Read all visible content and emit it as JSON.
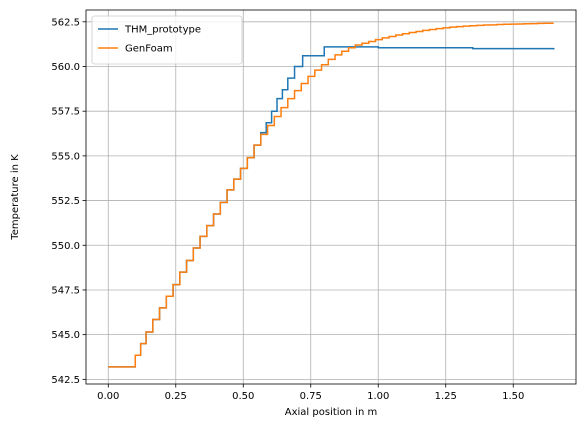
{
  "chart_data": {
    "type": "line",
    "title": "",
    "xlabel": "Axial position in m",
    "ylabel": "Temperature in K",
    "xlim": [
      -0.0825,
      1.7325
    ],
    "ylim": [
      542.24,
      563.16
    ],
    "xticks": [
      0.0,
      0.25,
      0.5,
      0.75,
      1.0,
      1.25,
      1.5
    ],
    "xtick_labels": [
      "0.00",
      "0.25",
      "0.50",
      "0.75",
      "1.00",
      "1.25",
      "1.50"
    ],
    "yticks": [
      542.5,
      545.0,
      547.5,
      550.0,
      552.5,
      555.0,
      557.5,
      560.0,
      562.5
    ],
    "ytick_labels": [
      "542.5",
      "545.0",
      "547.5",
      "550.0",
      "552.5",
      "555.0",
      "557.5",
      "560.0",
      "562.5"
    ],
    "grid": true,
    "legend_position": "top-left",
    "step": "post",
    "series": [
      {
        "name": "THM_prototype",
        "color": "#1f77b4",
        "x": [
          0.0,
          0.1,
          0.12,
          0.14,
          0.165,
          0.19,
          0.215,
          0.24,
          0.265,
          0.29,
          0.315,
          0.34,
          0.365,
          0.39,
          0.415,
          0.44,
          0.465,
          0.49,
          0.515,
          0.54,
          0.565,
          0.585,
          0.605,
          0.625,
          0.645,
          0.665,
          0.69,
          0.72,
          0.8,
          0.9,
          1.0,
          1.1,
          1.23,
          1.35,
          1.5,
          1.65
        ],
        "y": [
          543.2,
          543.85,
          544.5,
          545.15,
          545.85,
          546.5,
          547.15,
          547.8,
          548.5,
          549.15,
          549.85,
          550.5,
          551.1,
          551.75,
          552.4,
          553.1,
          553.7,
          554.3,
          554.9,
          555.6,
          556.3,
          556.85,
          557.5,
          558.2,
          558.7,
          559.35,
          560.0,
          560.6,
          561.1,
          561.1,
          561.05,
          561.05,
          561.05,
          561.0,
          561.0,
          560.95
        ]
      },
      {
        "name": "GenFoam",
        "color": "#ff7f0e",
        "x": [
          0.0,
          0.1,
          0.12,
          0.14,
          0.165,
          0.19,
          0.215,
          0.24,
          0.265,
          0.29,
          0.315,
          0.34,
          0.365,
          0.39,
          0.415,
          0.44,
          0.465,
          0.49,
          0.515,
          0.54,
          0.565,
          0.59,
          0.615,
          0.64,
          0.665,
          0.69,
          0.715,
          0.74,
          0.765,
          0.79,
          0.815,
          0.84,
          0.865,
          0.89,
          0.915,
          0.94,
          0.965,
          0.99,
          1.015,
          1.04,
          1.065,
          1.09,
          1.115,
          1.14,
          1.165,
          1.19,
          1.215,
          1.24,
          1.265,
          1.29,
          1.315,
          1.34,
          1.365,
          1.39,
          1.415,
          1.44,
          1.465,
          1.49,
          1.515,
          1.54,
          1.565,
          1.59,
          1.615,
          1.65
        ],
        "y": [
          543.2,
          543.85,
          544.5,
          545.15,
          545.85,
          546.5,
          547.15,
          547.8,
          548.5,
          549.15,
          549.85,
          550.5,
          551.1,
          551.75,
          552.4,
          553.1,
          553.7,
          554.3,
          554.9,
          555.6,
          556.2,
          556.7,
          557.2,
          557.7,
          558.2,
          558.65,
          559.05,
          559.45,
          559.8,
          560.1,
          560.4,
          560.65,
          560.85,
          561.05,
          561.2,
          561.3,
          561.4,
          561.5,
          561.6,
          561.68,
          561.76,
          561.83,
          561.9,
          561.96,
          562.02,
          562.07,
          562.12,
          562.16,
          562.2,
          562.23,
          562.26,
          562.28,
          562.3,
          562.32,
          562.33,
          562.35,
          562.36,
          562.37,
          562.38,
          562.39,
          562.4,
          562.41,
          562.42,
          562.42
        ]
      }
    ]
  }
}
